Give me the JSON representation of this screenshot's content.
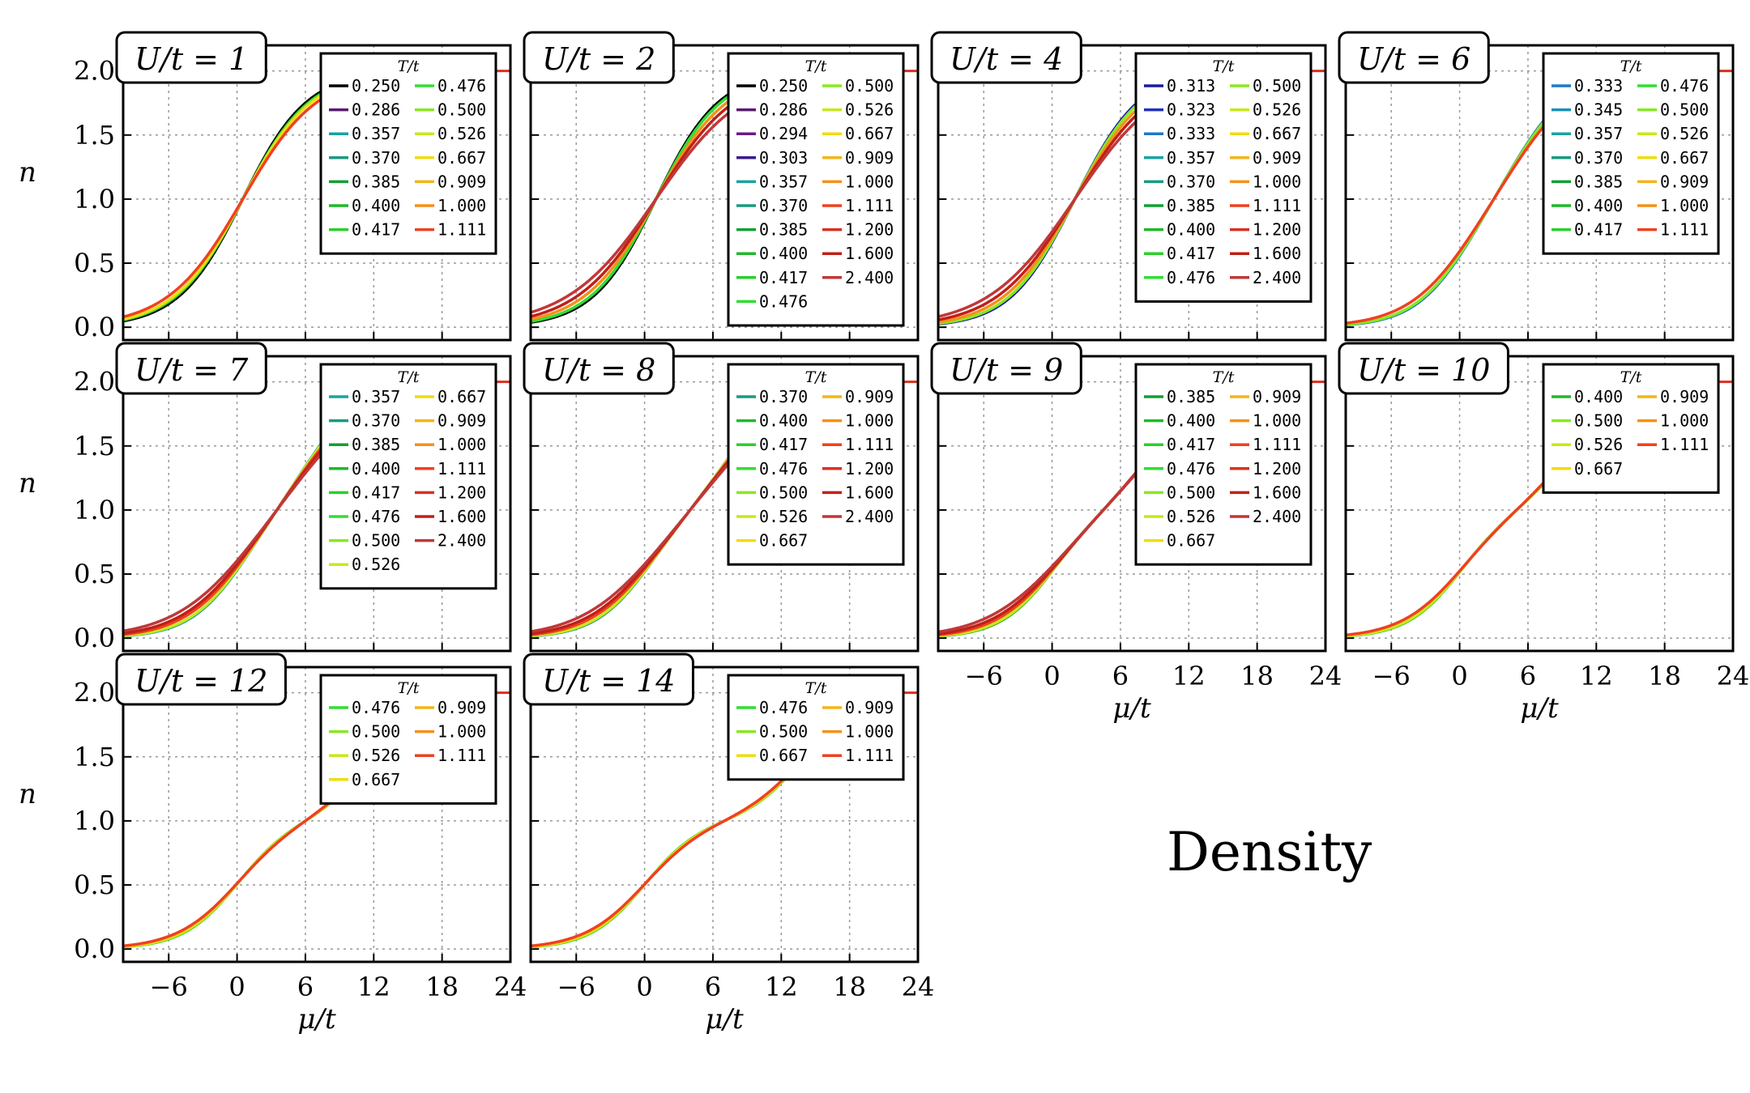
{
  "figure_label": "Density",
  "colors": {
    "0.250": "#000000",
    "0.286": "#5a1a70",
    "0.294": "#6a1a8a",
    "0.303": "#3a1a90",
    "0.313": "#1a1aa0",
    "0.323": "#2230c0",
    "0.333": "#1e78c8",
    "0.345": "#1a90b8",
    "0.357": "#19a3a0",
    "0.370": "#1a9a80",
    "0.385": "#11a030",
    "0.400": "#20b82a",
    "0.417": "#2ad02a",
    "0.476": "#33dd33",
    "0.500": "#88e822",
    "0.526": "#c8e81a",
    "0.667": "#f0dc10",
    "0.909": "#f4b41a",
    "1.000": "#f5901a",
    "1.111": "#f04020",
    "1.200": "#d83020",
    "1.600": "#c02018",
    "2.400": "#c03838"
  },
  "chart_data": [
    {
      "type": "line",
      "title": "U/t = 1",
      "U": 1,
      "xlabel": "",
      "ylabel": "n",
      "xlim": [
        -10,
        24
      ],
      "ylim": [
        -0.1,
        2.2
      ],
      "xticks": [],
      "yticks": [
        "0.0",
        "0.5",
        "1.0",
        "1.5",
        "2.0"
      ],
      "legend_title": "T/t",
      "legend_columns": [
        [
          "0.250",
          "0.286",
          "0.357",
          "0.370",
          "0.385",
          "0.400",
          "0.417"
        ],
        [
          "0.476",
          "0.500",
          "0.526",
          "0.667",
          "0.909",
          "1.000",
          "1.111"
        ]
      ],
      "curve_x_max": 7.5,
      "series": [
        {
          "name": "0.250",
          "temp": 0.25
        },
        {
          "name": "0.476",
          "temp": 0.476
        },
        {
          "name": "0.667",
          "temp": 0.667
        },
        {
          "name": "1.111",
          "temp": 1.111
        }
      ]
    },
    {
      "type": "line",
      "title": "U/t = 2",
      "U": 2,
      "xlabel": "",
      "ylabel": "",
      "xlim": [
        -10,
        24
      ],
      "ylim": [
        -0.1,
        2.2
      ],
      "xticks": [],
      "yticks": [],
      "legend_title": "T/t",
      "legend_columns": [
        [
          "0.250",
          "0.286",
          "0.294",
          "0.303",
          "0.357",
          "0.370",
          "0.385",
          "0.400",
          "0.417",
          "0.476"
        ],
        [
          "0.500",
          "0.526",
          "0.667",
          "0.909",
          "1.000",
          "1.111",
          "1.200",
          "1.600",
          "2.400"
        ]
      ],
      "curve_x_max": 8,
      "series": [
        {
          "name": "0.250",
          "temp": 0.25
        },
        {
          "name": "0.476",
          "temp": 0.476
        },
        {
          "name": "1.000",
          "temp": 1.0
        },
        {
          "name": "1.600",
          "temp": 1.6
        },
        {
          "name": "2.400",
          "temp": 2.4
        }
      ]
    },
    {
      "type": "line",
      "title": "U/t = 4",
      "U": 4,
      "xlabel": "",
      "ylabel": "",
      "xlim": [
        -10,
        24
      ],
      "ylim": [
        -0.1,
        2.2
      ],
      "xticks": [],
      "yticks": [],
      "legend_title": "T/t",
      "legend_columns": [
        [
          "0.313",
          "0.323",
          "0.333",
          "0.357",
          "0.370",
          "0.385",
          "0.400",
          "0.417",
          "0.476"
        ],
        [
          "0.500",
          "0.526",
          "0.667",
          "0.909",
          "1.000",
          "1.111",
          "1.200",
          "1.600",
          "2.400"
        ]
      ],
      "curve_x_max": 7.5,
      "series": [
        {
          "name": "0.313",
          "temp": 0.313
        },
        {
          "name": "0.500",
          "temp": 0.5
        },
        {
          "name": "1.000",
          "temp": 1.0
        },
        {
          "name": "1.600",
          "temp": 1.6
        },
        {
          "name": "2.400",
          "temp": 2.4
        }
      ]
    },
    {
      "type": "line",
      "title": "U/t = 6",
      "U": 6,
      "xlabel": "",
      "ylabel": "",
      "xlim": [
        -10,
        24
      ],
      "ylim": [
        -0.1,
        2.2
      ],
      "xticks": [],
      "yticks": [],
      "legend_title": "T/t",
      "legend_columns": [
        [
          "0.333",
          "0.345",
          "0.357",
          "0.370",
          "0.385",
          "0.400",
          "0.417"
        ],
        [
          "0.476",
          "0.500",
          "0.526",
          "0.667",
          "0.909",
          "1.000",
          "1.111"
        ]
      ],
      "curve_x_max": 7.5,
      "series": [
        {
          "name": "0.333",
          "temp": 0.333
        },
        {
          "name": "0.500",
          "temp": 0.5
        },
        {
          "name": "1.111",
          "temp": 1.111
        }
      ]
    },
    {
      "type": "line",
      "title": "U/t = 7",
      "U": 7,
      "xlabel": "",
      "ylabel": "n",
      "xlim": [
        -10,
        24
      ],
      "ylim": [
        -0.1,
        2.2
      ],
      "xticks": [],
      "yticks": [
        "0.0",
        "0.5",
        "1.0",
        "1.5",
        "2.0"
      ],
      "legend_title": "T/t",
      "legend_columns": [
        [
          "0.357",
          "0.370",
          "0.385",
          "0.400",
          "0.417",
          "0.476",
          "0.500",
          "0.526"
        ],
        [
          "0.667",
          "0.909",
          "1.000",
          "1.111",
          "1.200",
          "1.600",
          "2.400"
        ]
      ],
      "curve_x_max": 8,
      "series": [
        {
          "name": "0.357",
          "temp": 0.357
        },
        {
          "name": "0.526",
          "temp": 0.526
        },
        {
          "name": "1.111",
          "temp": 1.111
        },
        {
          "name": "1.600",
          "temp": 1.6
        },
        {
          "name": "2.400",
          "temp": 2.4
        }
      ]
    },
    {
      "type": "line",
      "title": "U/t = 8",
      "U": 8,
      "xlabel": "",
      "ylabel": "",
      "xlim": [
        -10,
        24
      ],
      "ylim": [
        -0.1,
        2.2
      ],
      "xticks": [],
      "yticks": [],
      "legend_title": "T/t",
      "legend_columns": [
        [
          "0.370",
          "0.400",
          "0.417",
          "0.476",
          "0.500",
          "0.526",
          "0.667"
        ],
        [
          "0.909",
          "1.000",
          "1.111",
          "1.200",
          "1.600",
          "2.400"
        ]
      ],
      "curve_x_max": 8,
      "series": [
        {
          "name": "0.370",
          "temp": 0.37
        },
        {
          "name": "0.526",
          "temp": 0.526
        },
        {
          "name": "1.111",
          "temp": 1.111
        },
        {
          "name": "1.600",
          "temp": 1.6
        },
        {
          "name": "2.400",
          "temp": 2.4
        }
      ]
    },
    {
      "type": "line",
      "title": "U/t = 9",
      "U": 9,
      "xlabel": "μ/t",
      "ylabel": "",
      "xlim": [
        -10,
        24
      ],
      "ylim": [
        -0.1,
        2.2
      ],
      "xticks": [
        "−6",
        "0",
        "6",
        "12",
        "18",
        "24"
      ],
      "yticks": [],
      "legend_title": "T/t",
      "legend_columns": [
        [
          "0.385",
          "0.400",
          "0.417",
          "0.476",
          "0.500",
          "0.526",
          "0.667"
        ],
        [
          "0.909",
          "1.000",
          "1.111",
          "1.200",
          "1.600",
          "2.400"
        ]
      ],
      "curve_x_max": 8,
      "series": [
        {
          "name": "0.385",
          "temp": 0.385
        },
        {
          "name": "0.526",
          "temp": 0.526
        },
        {
          "name": "1.111",
          "temp": 1.111
        },
        {
          "name": "1.600",
          "temp": 1.6
        },
        {
          "name": "2.400",
          "temp": 2.4
        }
      ]
    },
    {
      "type": "line",
      "title": "U/t = 10",
      "U": 10,
      "xlabel": "μ/t",
      "ylabel": "",
      "xlim": [
        -10,
        24
      ],
      "ylim": [
        -0.1,
        2.2
      ],
      "xticks": [
        "−6",
        "0",
        "6",
        "12",
        "18",
        "24"
      ],
      "yticks": [],
      "legend_title": "T/t",
      "legend_columns": [
        [
          "0.400",
          "0.500",
          "0.526",
          "0.667"
        ],
        [
          "0.909",
          "1.000",
          "1.111"
        ]
      ],
      "curve_x_max": 7.5,
      "series": [
        {
          "name": "0.400",
          "temp": 0.4
        },
        {
          "name": "0.526",
          "temp": 0.526
        },
        {
          "name": "1.111",
          "temp": 1.111
        }
      ]
    },
    {
      "type": "line",
      "title": "U/t = 12",
      "U": 12,
      "xlabel": "μ/t",
      "ylabel": "n",
      "xlim": [
        -10,
        24
      ],
      "ylim": [
        -0.1,
        2.2
      ],
      "xticks": [
        "−6",
        "0",
        "6",
        "12",
        "18",
        "24"
      ],
      "yticks": [
        "0.0",
        "0.5",
        "1.0",
        "1.5",
        "2.0"
      ],
      "legend_title": "T/t",
      "legend_columns": [
        [
          "0.476",
          "0.500",
          "0.526",
          "0.667"
        ],
        [
          "0.909",
          "1.000",
          "1.111"
        ]
      ],
      "curve_x_max": 9,
      "series": [
        {
          "name": "0.476",
          "temp": 0.476
        },
        {
          "name": "0.667",
          "temp": 0.667
        },
        {
          "name": "1.111",
          "temp": 1.111
        }
      ]
    },
    {
      "type": "line",
      "title": "U/t = 14",
      "U": 14,
      "xlabel": "μ/t",
      "ylabel": "",
      "xlim": [
        -10,
        24
      ],
      "ylim": [
        -0.1,
        2.2
      ],
      "xticks": [
        "−6",
        "0",
        "6",
        "12",
        "18",
        "24"
      ],
      "yticks": [],
      "legend_title": "T/t",
      "legend_columns": [
        [
          "0.476",
          "0.500",
          "0.667"
        ],
        [
          "0.909",
          "1.000",
          "1.111"
        ]
      ],
      "curve_x_max": 14,
      "series": [
        {
          "name": "0.476",
          "temp": 0.476
        },
        {
          "name": "0.667",
          "temp": 0.667
        },
        {
          "name": "1.111",
          "temp": 1.111
        }
      ]
    }
  ]
}
